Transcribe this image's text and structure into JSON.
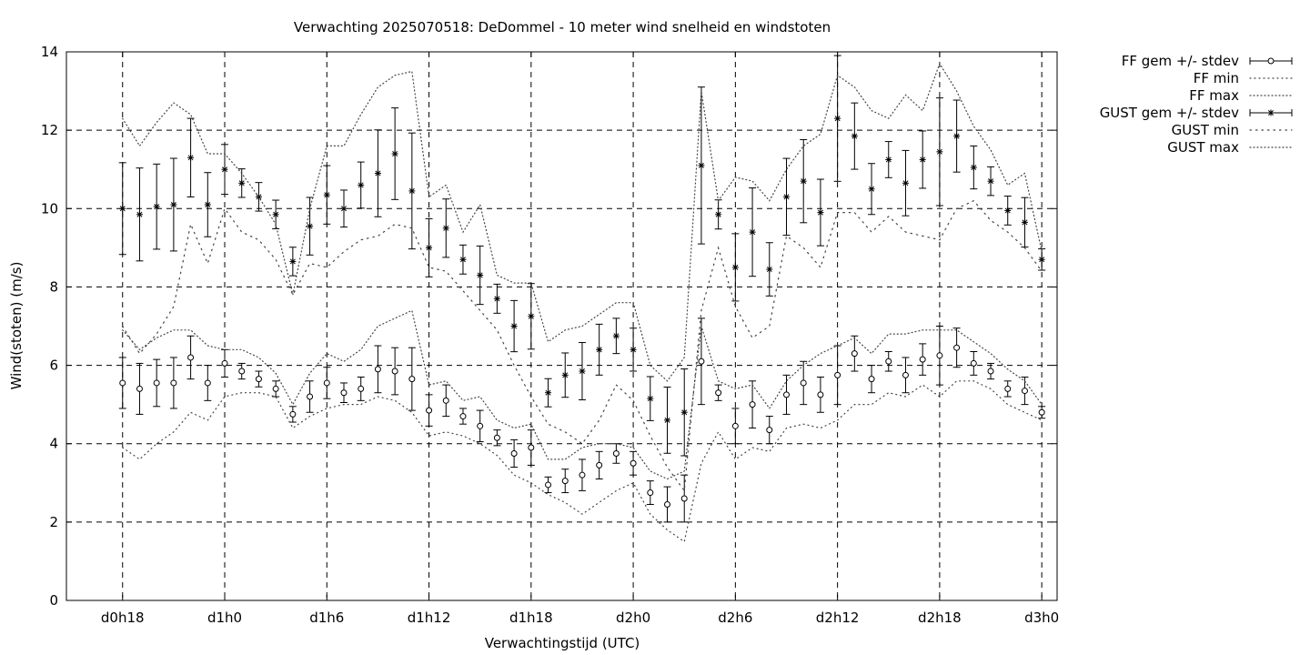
{
  "chart_data": {
    "type": "line",
    "title": "Verwachting 2025070518: DeDommel - 10 meter wind snelheid en windstoten",
    "xlabel": "Verwachtingstijd (UTC)",
    "ylabel": "Wind(stoten) (m/s)",
    "ylim": [
      0,
      14
    ],
    "xlim_hours": [
      14.7,
      72.9
    ],
    "y_ticks": [
      0,
      2,
      4,
      6,
      8,
      10,
      12,
      14
    ],
    "x_ticks": [
      {
        "h": 18,
        "label": "d0h18"
      },
      {
        "h": 24,
        "label": "d1h0"
      },
      {
        "h": 30,
        "label": "d1h6"
      },
      {
        "h": 36,
        "label": "d1h12"
      },
      {
        "h": 42,
        "label": "d1h18"
      },
      {
        "h": 48,
        "label": "d2h0"
      },
      {
        "h": 54,
        "label": "d2h6"
      },
      {
        "h": 60,
        "label": "d2h12"
      },
      {
        "h": 66,
        "label": "d2h18"
      },
      {
        "h": 72,
        "label": "d3h0"
      }
    ],
    "grid": true,
    "legend_position": "outside-top-right",
    "x_hours": [
      18,
      19,
      20,
      21,
      22,
      23,
      24,
      25,
      26,
      27,
      28,
      29,
      30,
      31,
      32,
      33,
      34,
      35,
      36,
      37,
      38,
      39,
      40,
      41,
      42,
      43,
      44,
      45,
      46,
      47,
      48,
      49,
      50,
      51,
      52,
      53,
      54,
      55,
      56,
      57,
      58,
      59,
      60,
      61,
      62,
      63,
      64,
      65,
      66,
      67,
      68,
      69,
      70,
      71,
      72
    ],
    "series": [
      {
        "name": "FF gem +/- stdev",
        "style": "errorbar-circle",
        "mean": [
          5.55,
          5.4,
          5.55,
          5.55,
          6.2,
          5.55,
          6.05,
          5.85,
          5.65,
          5.4,
          4.75,
          5.2,
          5.55,
          5.3,
          5.4,
          5.9,
          5.85,
          5.65,
          4.85,
          5.1,
          4.7,
          4.45,
          4.15,
          3.75,
          3.9,
          2.95,
          3.05,
          3.2,
          3.45,
          3.75,
          3.5,
          2.75,
          2.45,
          2.6,
          6.1,
          5.3,
          4.45,
          5.0,
          4.35,
          5.25,
          5.55,
          5.25,
          5.75,
          6.3,
          5.65,
          6.1,
          5.75,
          6.15,
          6.25,
          6.45,
          6.05,
          5.85,
          5.4,
          5.35,
          4.8
        ],
        "stdev": [
          0.65,
          0.65,
          0.6,
          0.65,
          0.55,
          0.45,
          0.35,
          0.2,
          0.2,
          0.2,
          0.2,
          0.4,
          0.4,
          0.25,
          0.3,
          0.6,
          0.6,
          0.8,
          0.4,
          0.4,
          0.2,
          0.4,
          0.2,
          0.35,
          0.45,
          0.2,
          0.3,
          0.4,
          0.35,
          0.25,
          0.3,
          0.3,
          0.45,
          0.6,
          1.1,
          0.2,
          0.45,
          0.6,
          0.35,
          0.5,
          0.55,
          0.45,
          0.75,
          0.45,
          0.35,
          0.25,
          0.45,
          0.4,
          0.75,
          0.5,
          0.3,
          0.2,
          0.2,
          0.35,
          0.15
        ]
      },
      {
        "name": "FF min",
        "style": "dotted",
        "values": [
          3.9,
          3.6,
          4.0,
          4.3,
          4.8,
          4.6,
          5.2,
          5.3,
          5.3,
          5.2,
          4.4,
          4.7,
          4.9,
          5.0,
          5.0,
          5.2,
          5.1,
          4.8,
          4.2,
          4.3,
          4.2,
          4.0,
          3.7,
          3.2,
          3.0,
          2.7,
          2.5,
          2.2,
          2.5,
          2.8,
          3.0,
          2.2,
          1.8,
          1.5,
          3.5,
          4.3,
          3.6,
          3.9,
          3.8,
          4.4,
          4.5,
          4.4,
          4.6,
          5.0,
          5.0,
          5.3,
          5.2,
          5.5,
          5.2,
          5.6,
          5.6,
          5.4,
          5.0,
          4.8,
          4.6
        ]
      },
      {
        "name": "FF max",
        "style": "dotted",
        "values": [
          6.9,
          6.4,
          6.7,
          6.9,
          6.9,
          6.5,
          6.4,
          6.4,
          6.2,
          5.8,
          5.0,
          5.8,
          6.3,
          6.1,
          6.4,
          7.0,
          7.2,
          7.4,
          5.5,
          5.6,
          5.1,
          5.2,
          4.6,
          4.4,
          4.5,
          3.6,
          3.6,
          3.9,
          4.0,
          4.0,
          3.9,
          3.3,
          3.1,
          3.3,
          7.0,
          5.6,
          5.4,
          5.5,
          4.9,
          5.6,
          6.0,
          6.3,
          6.5,
          6.7,
          6.3,
          6.8,
          6.8,
          6.9,
          6.9,
          6.9,
          6.6,
          6.3,
          5.9,
          5.6,
          5.0
        ]
      },
      {
        "name": "GUST gem +/- stdev",
        "style": "errorbar-star",
        "mean": [
          10.0,
          9.85,
          10.05,
          10.1,
          11.3,
          10.1,
          11.0,
          10.65,
          10.3,
          9.85,
          8.65,
          9.55,
          10.35,
          10.0,
          10.6,
          10.9,
          11.4,
          10.45,
          9.0,
          9.5,
          8.7,
          8.3,
          7.7,
          7.0,
          7.25,
          5.3,
          5.75,
          5.85,
          6.4,
          6.75,
          6.4,
          5.15,
          4.6,
          4.8,
          11.1,
          9.85,
          8.5,
          9.4,
          8.45,
          10.3,
          10.7,
          9.9,
          12.3,
          11.85,
          10.5,
          11.25,
          10.65,
          11.25,
          11.45,
          11.85,
          11.05,
          10.7,
          9.95,
          9.65,
          8.7
        ]
      },
      {
        "name": "GUST min",
        "style": "dotted",
        "values": [
          7.0,
          6.3,
          6.8,
          7.5,
          9.6,
          8.6,
          10.0,
          9.4,
          9.2,
          8.7,
          7.8,
          8.6,
          8.5,
          8.9,
          9.2,
          9.3,
          9.6,
          9.5,
          8.5,
          8.4,
          7.9,
          7.4,
          6.9,
          6.0,
          5.2,
          4.5,
          4.3,
          4.0,
          4.6,
          5.5,
          5.1,
          4.2,
          3.4,
          2.8,
          7.4,
          9.0,
          7.5,
          6.7,
          7.0,
          9.3,
          9.0,
          8.5,
          9.9,
          9.9,
          9.4,
          9.8,
          9.4,
          9.3,
          9.2,
          10.0,
          10.2,
          9.7,
          9.4,
          9.0,
          8.4
        ]
      },
      {
        "name": "GUST max",
        "style": "dotted",
        "values": [
          12.3,
          11.6,
          12.2,
          12.7,
          12.4,
          11.4,
          11.4,
          10.9,
          10.3,
          9.6,
          7.8,
          10.0,
          11.6,
          11.6,
          12.4,
          13.1,
          13.4,
          13.5,
          10.3,
          10.6,
          9.4,
          10.1,
          8.3,
          8.1,
          8.1,
          6.6,
          6.9,
          7.0,
          7.3,
          7.6,
          7.6,
          6.0,
          5.6,
          6.2,
          13.0,
          10.2,
          10.8,
          10.7,
          10.2,
          11.0,
          11.6,
          11.9,
          13.4,
          13.1,
          12.5,
          12.3,
          12.9,
          12.5,
          13.7,
          13.0,
          12.1,
          11.5,
          10.6,
          10.9,
          8.9
        ]
      }
    ]
  }
}
